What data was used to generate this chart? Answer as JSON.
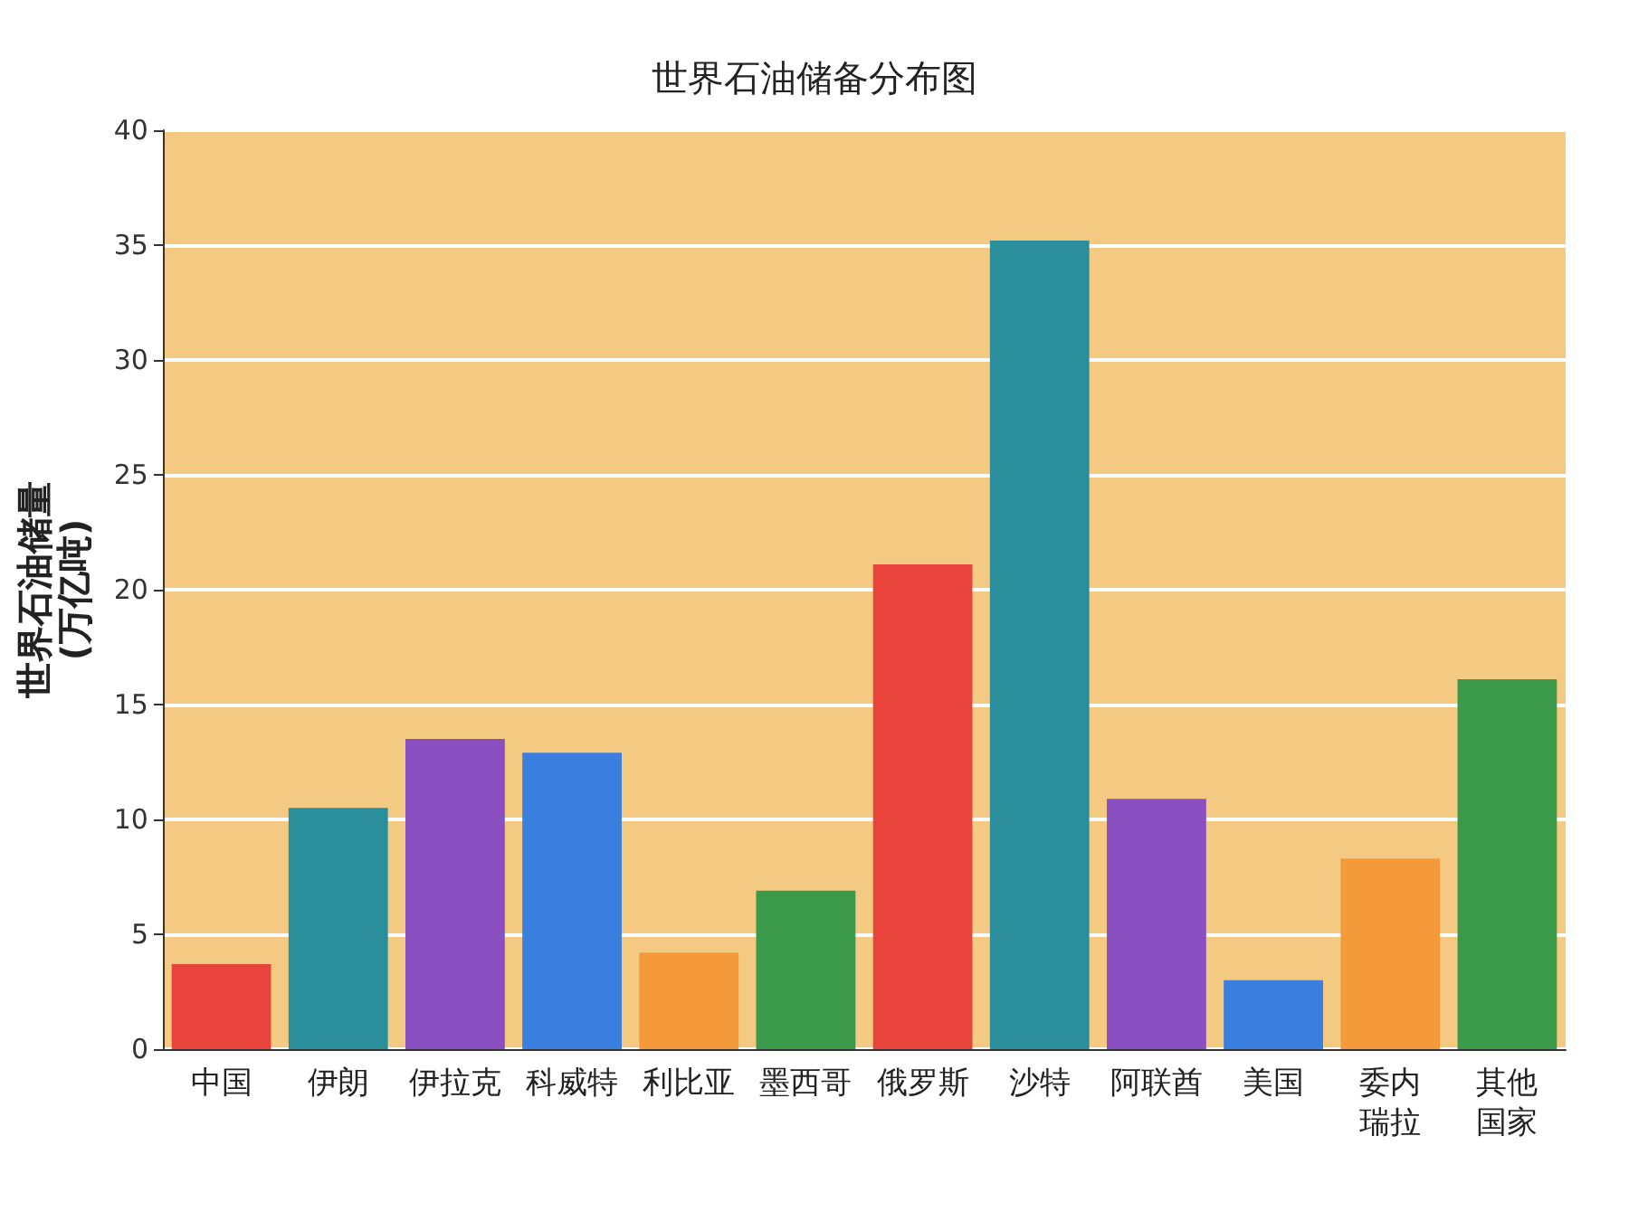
{
  "chart_data": {
    "type": "bar",
    "title": "世界石油储备分布图",
    "ylabel": "世界石油储量\n(万亿吨)",
    "categories": [
      "中国",
      "伊朗",
      "伊拉克",
      "科威特",
      "利比亚",
      "墨西哥",
      "俄罗斯",
      "沙特",
      "阿联酋",
      "美国",
      "委内瑞拉",
      "其他国家"
    ],
    "values": [
      3.7,
      10.5,
      13.5,
      12.9,
      4.2,
      6.9,
      21.1,
      35.2,
      10.9,
      3.0,
      8.3,
      16.1
    ],
    "colors": [
      "#e8443c",
      "#2a8f9a",
      "#8a4fc0",
      "#3a7fe0",
      "#f59a3a",
      "#3a9a4a",
      "#e8443c",
      "#2a8f9a",
      "#8a4fc0",
      "#3a7fe0",
      "#f59a3a",
      "#3a9a4a"
    ],
    "ylim": [
      0,
      40
    ],
    "yticks": [
      0,
      5,
      10,
      15,
      20,
      25,
      30,
      35,
      40
    ],
    "grid": "y"
  }
}
